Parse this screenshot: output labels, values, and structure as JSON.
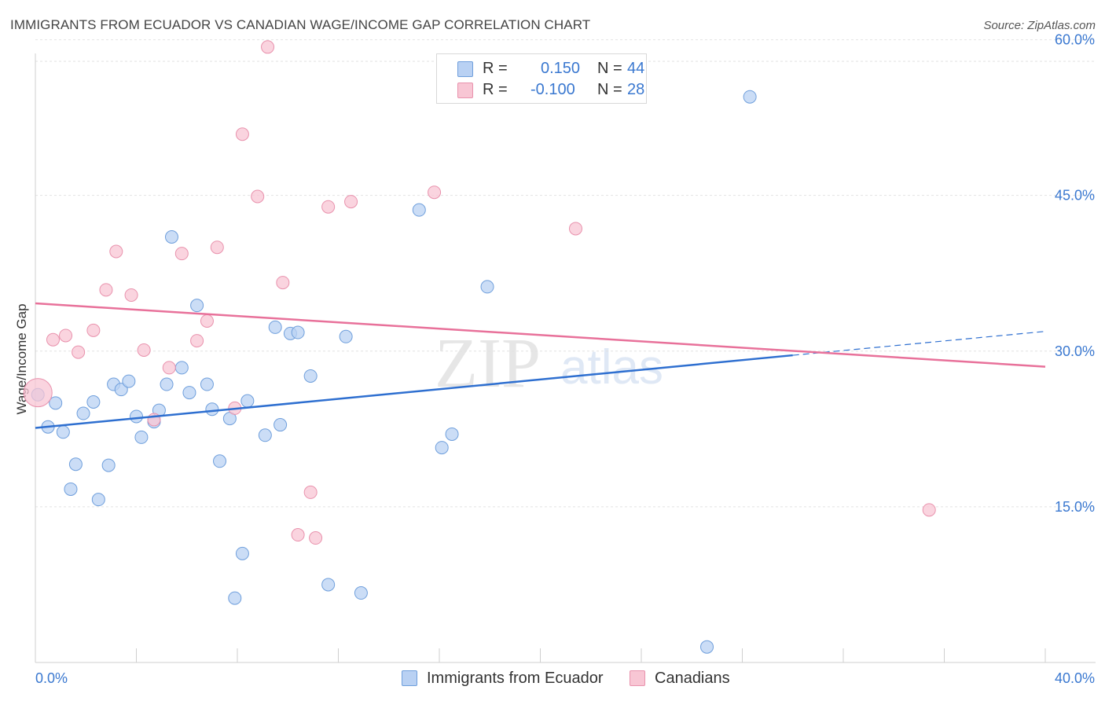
{
  "title": "IMMIGRANTS FROM ECUADOR VS CANADIAN WAGE/INCOME GAP CORRELATION CHART",
  "source": "Source: ZipAtlas.com",
  "watermark": {
    "zip": "ZIP",
    "atlas": "atlas"
  },
  "legend_top": {
    "rows": [
      {
        "r_label": "R =",
        "r_value": "0.150",
        "n_label": "N =",
        "n_value": "44"
      },
      {
        "r_label": "R =",
        "r_value": "-0.100",
        "n_label": "N =",
        "n_value": "28"
      }
    ]
  },
  "legend_bottom": {
    "series1": "Immigrants from Ecuador",
    "series2": "Canadians"
  },
  "colors": {
    "blue_fill": "#b9d1f3",
    "blue_stroke": "#6f9fdc",
    "blue_line": "#2e6fd0",
    "pink_fill": "#f8c6d4",
    "pink_stroke": "#e992ad",
    "pink_line": "#e8719a",
    "tick_label": "#3a78d0",
    "grid": "#e2e2e2"
  },
  "chart_data": {
    "type": "scatter",
    "title": "IMMIGRANTS FROM ECUADOR VS CANADIAN WAGE/INCOME GAP CORRELATION CHART",
    "xlabel": "",
    "ylabel": "Wage/Income Gap",
    "xlim": [
      0,
      40
    ],
    "ylim": [
      0,
      60.8
    ],
    "x_tick_labels": [
      "0.0%",
      "40.0%"
    ],
    "y_ticks": [
      15,
      30,
      45,
      60
    ],
    "y_tick_labels": [
      "15.0%",
      "30.0%",
      "45.0%",
      "60.0%"
    ],
    "grid": "horizontal dashed",
    "legend_position": "top-center",
    "series": [
      {
        "name": "Immigrants from Ecuador",
        "color": "#b9d1f3",
        "points": [
          [
            0.1,
            25.8
          ],
          [
            0.5,
            22.7
          ],
          [
            0.8,
            25.0
          ],
          [
            1.1,
            22.2
          ],
          [
            1.4,
            16.7
          ],
          [
            1.6,
            19.1
          ],
          [
            1.9,
            24.0
          ],
          [
            2.3,
            25.1
          ],
          [
            2.5,
            15.7
          ],
          [
            2.9,
            19.0
          ],
          [
            3.1,
            26.8
          ],
          [
            3.4,
            26.3
          ],
          [
            3.7,
            27.1
          ],
          [
            4.0,
            23.7
          ],
          [
            4.2,
            21.7
          ],
          [
            4.7,
            23.2
          ],
          [
            4.9,
            24.3
          ],
          [
            5.2,
            26.8
          ],
          [
            5.4,
            41.0
          ],
          [
            5.8,
            28.4
          ],
          [
            6.1,
            26.0
          ],
          [
            6.4,
            34.4
          ],
          [
            6.8,
            26.8
          ],
          [
            7.0,
            24.4
          ],
          [
            7.3,
            19.4
          ],
          [
            7.7,
            23.5
          ],
          [
            7.9,
            6.2
          ],
          [
            8.2,
            10.5
          ],
          [
            8.4,
            25.2
          ],
          [
            9.1,
            21.9
          ],
          [
            9.5,
            32.3
          ],
          [
            9.7,
            22.9
          ],
          [
            10.1,
            31.7
          ],
          [
            10.4,
            31.8
          ],
          [
            10.9,
            27.6
          ],
          [
            11.6,
            7.5
          ],
          [
            12.3,
            31.4
          ],
          [
            12.9,
            6.7
          ],
          [
            15.2,
            43.6
          ],
          [
            16.1,
            20.7
          ],
          [
            16.5,
            22.0
          ],
          [
            17.9,
            36.2
          ],
          [
            26.6,
            1.5
          ],
          [
            28.3,
            54.5
          ]
        ]
      },
      {
        "name": "Canadians",
        "color": "#f8c6d4",
        "points": [
          [
            0.1,
            26.0
          ],
          [
            0.7,
            31.1
          ],
          [
            1.2,
            31.5
          ],
          [
            1.7,
            29.9
          ],
          [
            2.3,
            32.0
          ],
          [
            2.8,
            35.9
          ],
          [
            3.2,
            39.6
          ],
          [
            3.8,
            35.4
          ],
          [
            4.3,
            30.1
          ],
          [
            4.7,
            23.4
          ],
          [
            5.3,
            28.4
          ],
          [
            5.8,
            39.4
          ],
          [
            6.4,
            31.0
          ],
          [
            6.8,
            32.9
          ],
          [
            7.2,
            40.0
          ],
          [
            7.9,
            24.5
          ],
          [
            8.2,
            50.9
          ],
          [
            8.8,
            44.9
          ],
          [
            9.2,
            59.3
          ],
          [
            9.8,
            36.6
          ],
          [
            10.4,
            12.3
          ],
          [
            10.9,
            16.4
          ],
          [
            11.1,
            12.0
          ],
          [
            11.6,
            43.9
          ],
          [
            12.5,
            44.4
          ],
          [
            15.8,
            45.3
          ],
          [
            21.4,
            41.8
          ],
          [
            35.4,
            14.7
          ]
        ]
      }
    ],
    "trend_lines": [
      {
        "series": "Immigrants from Ecuador",
        "x": [
          0,
          30.0
        ],
        "y": [
          22.6,
          29.6
        ],
        "dashed_extension_to": [
          40,
          31.9
        ]
      },
      {
        "series": "Canadians",
        "x": [
          0,
          40
        ],
        "y": [
          34.6,
          28.5
        ]
      }
    ]
  }
}
